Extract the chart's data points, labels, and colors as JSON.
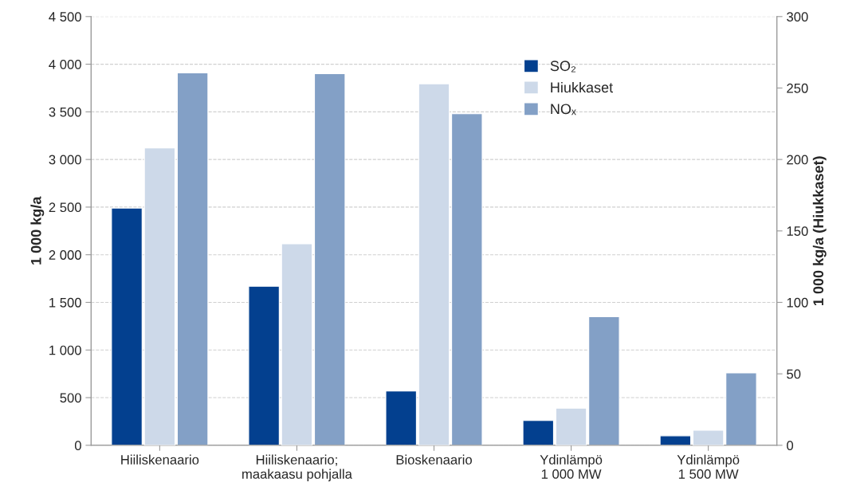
{
  "chart_data": {
    "type": "bar",
    "categories": [
      "Hiiliskenaario",
      "Hiiliskenaario;\nmaakaasu pohjalla",
      "Bioskenaario",
      "Ydinlämpö\n1 000 MW",
      "Ydinlämpö\n1 500 MW"
    ],
    "series": [
      {
        "name": "SO₂",
        "color": "#03408f",
        "values": [
          2490,
          1670,
          570,
          260,
          100
        ]
      },
      {
        "name": "Hiukkaset",
        "color": "#cdd9e9",
        "values": [
          208,
          141,
          253,
          26,
          10.5
        ],
        "axis": "y2"
      },
      {
        "name": "NOₓ",
        "color": "#83a0c6",
        "values": [
          3910,
          3900,
          3480,
          1350,
          760
        ]
      }
    ],
    "ylabel": "1 000 kg/a",
    "y2label": "1 000 kg/a (Hiukkaset)",
    "ylim": [
      0,
      4500
    ],
    "yticks": [
      0,
      500,
      {
        "value": 1000,
        "label": "1 000"
      },
      {
        "value": 1500,
        "label": "1 500"
      },
      {
        "value": 2000,
        "label": "2 000"
      },
      {
        "value": 2500,
        "label": "2 500"
      },
      {
        "value": 3000,
        "label": "3 000"
      },
      {
        "value": 3500,
        "label": "3 500"
      },
      {
        "value": 4000,
        "label": "4 000"
      },
      {
        "value": 4500,
        "label": "4 500"
      }
    ],
    "y2lim": [
      0,
      300
    ],
    "y2ticks": [
      0,
      50,
      100,
      150,
      200,
      250,
      300
    ],
    "grid": "y",
    "legend": "top right"
  }
}
